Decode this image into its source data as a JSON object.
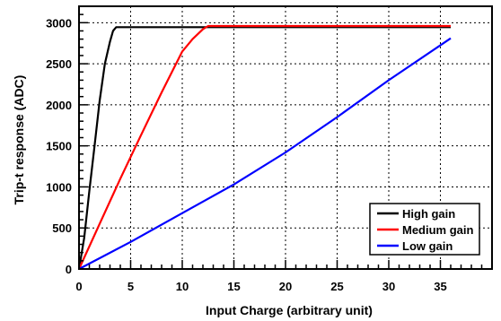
{
  "chart_data": {
    "type": "line",
    "title": "",
    "xlabel": "Input Charge (arbitrary unit)",
    "ylabel": "Trip-t response (ADC)",
    "xlim": [
      0,
      40
    ],
    "ylim": [
      0,
      3200
    ],
    "x_ticks": [
      0,
      5,
      10,
      15,
      20,
      25,
      30,
      35
    ],
    "y_ticks": [
      0,
      500,
      1000,
      1500,
      2000,
      2500,
      3000
    ],
    "grid": true,
    "legend_position": "bottom-right",
    "series": [
      {
        "name": "High gain",
        "color": "#000000",
        "x": [
          0,
          0.5,
          1,
          1.5,
          2,
          2.5,
          3,
          3.3,
          3.6,
          4,
          36
        ],
        "y": [
          0,
          380,
          950,
          1500,
          2050,
          2500,
          2770,
          2900,
          2945,
          2945,
          2945
        ]
      },
      {
        "name": "Medium gain",
        "color": "#ff0000",
        "x": [
          0,
          2,
          4,
          6,
          8,
          10,
          11,
          12,
          12.5,
          36
        ],
        "y": [
          0,
          550,
          1100,
          1630,
          2150,
          2650,
          2800,
          2920,
          2960,
          2960
        ]
      },
      {
        "name": "Low gain",
        "color": "#0000ff",
        "x": [
          0,
          5,
          10,
          15,
          20,
          25,
          30,
          36
        ],
        "y": [
          0,
          330,
          680,
          1030,
          1420,
          1850,
          2300,
          2810
        ]
      }
    ]
  }
}
